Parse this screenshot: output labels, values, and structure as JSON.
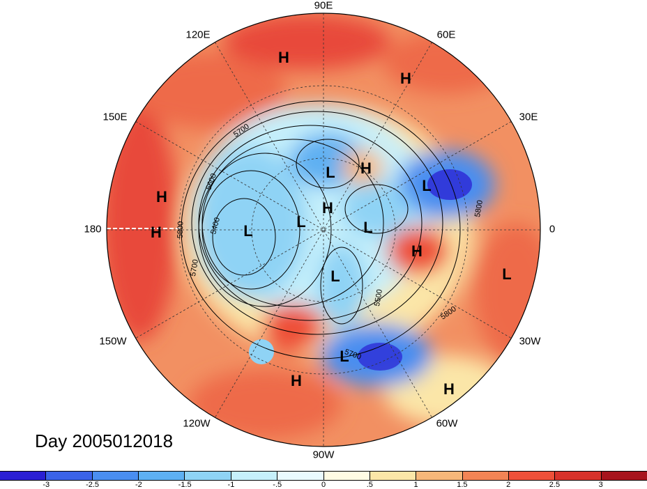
{
  "title": "Day 2005012018",
  "longitude_labels": [
    "90E",
    "60E",
    "30E",
    "0",
    "30W",
    "60W",
    "90W",
    "120W",
    "150W",
    "180",
    "150E",
    "120E"
  ],
  "pressure_centers": [
    "H",
    "H",
    "L",
    "H",
    "H",
    "L",
    "H",
    "L",
    "L",
    "L",
    "H",
    "L",
    "L",
    "H",
    "H",
    "L",
    "H"
  ],
  "contour_labels": [
    "5700",
    "5600",
    "5800",
    "5400",
    "5700",
    "5800",
    "5500",
    "5800",
    "5700"
  ],
  "colorbar": {
    "ticks": [
      "-3",
      "-2.5",
      "-2",
      "-1.5",
      "-1",
      "-.5",
      "0",
      ".5",
      "1",
      "1.5",
      "2",
      "2.5",
      "3"
    ],
    "colors": [
      "#2a1fd3",
      "#3b63e8",
      "#4a8ef0",
      "#5eb0f2",
      "#8fd3f5",
      "#c6f0fb",
      "#eafafe",
      "#fffbe4",
      "#fbe6a8",
      "#f6b77a",
      "#f28455",
      "#ee5039",
      "#d7322a",
      "#a7141d"
    ]
  }
}
